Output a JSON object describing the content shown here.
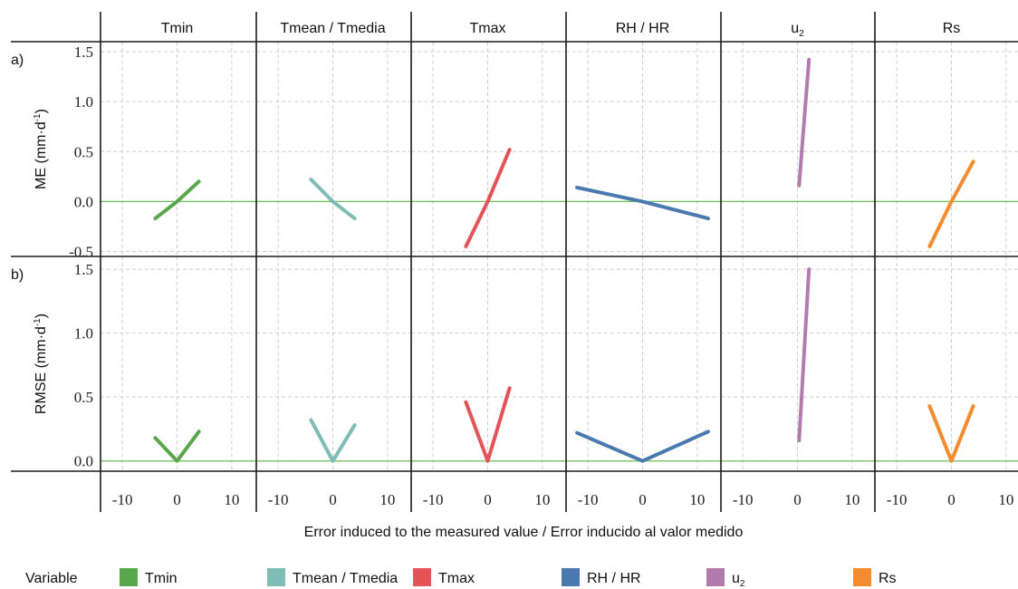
{
  "chart_data": {
    "type": "line",
    "xlabel": "Error induced to the measured value / Error inducido al valor medido",
    "x_ticks": [
      "-10",
      "0",
      "10"
    ],
    "xlim": [
      -14,
      14
    ],
    "legend_title": "Variable",
    "legend_position": "bottom",
    "panels": [
      {
        "name": "Tmin",
        "color": "#5aa64b"
      },
      {
        "name": "Tmean / Tmedia",
        "color": "#7fbcb5"
      },
      {
        "name": "Tmax",
        "color": "#e35357"
      },
      {
        "name": "RH / HR",
        "color": "#4a79b0"
      },
      {
        "name": "u",
        "sub": "2",
        "color": "#b27bb0"
      },
      {
        "name": "Rs",
        "color": "#f28c2e"
      }
    ],
    "rows": [
      {
        "tag": "a)",
        "ylabel": "ME (mm·d",
        "ylabel_sup": "-1",
        "ylabel_end": ")",
        "ylim": [
          -0.55,
          1.6
        ],
        "y_ticks": [
          "1.5",
          "1.0",
          "0.5",
          "0.0",
          "-0.5"
        ],
        "y_tick_values": [
          1.5,
          1.0,
          0.5,
          0.0,
          -0.5
        ],
        "series": [
          {
            "name": "Tmin",
            "x": [
              -4,
              0,
              4
            ],
            "y": [
              -0.17,
              0.0,
              0.2
            ]
          },
          {
            "name": "Tmean / Tmedia",
            "x": [
              -4,
              0,
              4
            ],
            "y": [
              0.22,
              0.0,
              -0.17
            ]
          },
          {
            "name": "Tmax",
            "x": [
              -4,
              0,
              4
            ],
            "y": [
              -0.45,
              0.0,
              0.52
            ]
          },
          {
            "name": "RH / HR",
            "x": [
              -12,
              0,
              12
            ],
            "y": [
              0.14,
              0.0,
              -0.17
            ]
          },
          {
            "name": "u",
            "x": [
              0.3,
              2.1
            ],
            "y": [
              0.16,
              1.42
            ]
          },
          {
            "name": "Rs",
            "x": [
              -4,
              0,
              4
            ],
            "y": [
              -0.45,
              0.0,
              0.4
            ]
          }
        ]
      },
      {
        "tag": "b)",
        "ylabel": "RMSE (mm·d",
        "ylabel_sup": "-1",
        "ylabel_end": ")",
        "ylim": [
          -0.08,
          1.6
        ],
        "y_ticks": [
          "1.5",
          "1.0",
          "0.5",
          "0.0"
        ],
        "y_tick_values": [
          1.5,
          1.0,
          0.5,
          0.0
        ],
        "series": [
          {
            "name": "Tmin",
            "x": [
              -4,
              0,
              4
            ],
            "y": [
              0.18,
              0.0,
              0.23
            ]
          },
          {
            "name": "Tmean / Tmedia",
            "x": [
              -4,
              0,
              4
            ],
            "y": [
              0.32,
              0.0,
              0.28
            ]
          },
          {
            "name": "Tmax",
            "x": [
              -4,
              0,
              4
            ],
            "y": [
              0.46,
              0.0,
              0.57
            ]
          },
          {
            "name": "RH / HR",
            "x": [
              -12,
              0,
              12
            ],
            "y": [
              0.22,
              0.0,
              0.23
            ]
          },
          {
            "name": "u",
            "x": [
              0.3,
              2.1
            ],
            "y": [
              0.16,
              1.5
            ]
          },
          {
            "name": "Rs",
            "x": [
              -4,
              0,
              4
            ],
            "y": [
              0.43,
              0.0,
              0.43
            ]
          }
        ]
      }
    ]
  }
}
